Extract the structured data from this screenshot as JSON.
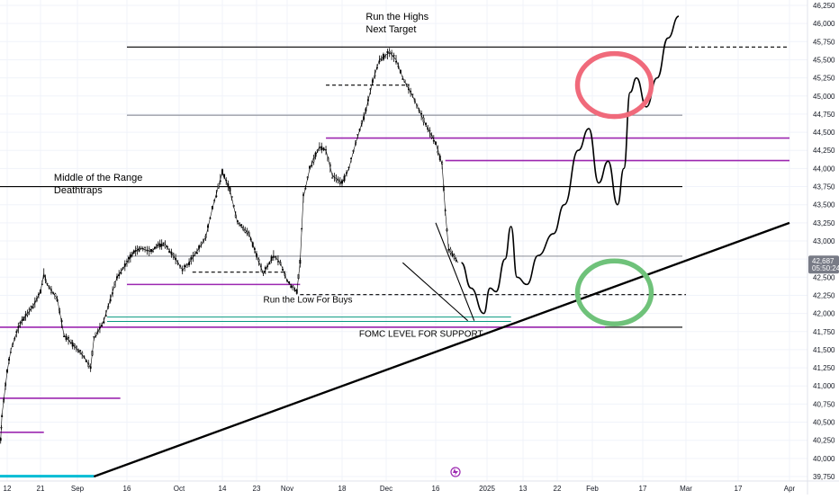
{
  "chart_data": {
    "type": "line",
    "subtype": "candlestick-with-annotations",
    "title": "",
    "xlabel": "",
    "ylabel": "",
    "ylim": [
      39750,
      46250
    ],
    "y_ticks": [
      39750,
      40000,
      40250,
      40500,
      40750,
      41000,
      41250,
      41500,
      41750,
      42000,
      42250,
      42500,
      42750,
      43000,
      43250,
      43500,
      43750,
      44000,
      44250,
      44500,
      44750,
      45000,
      45250,
      45500,
      45750,
      46000,
      46250
    ],
    "y_tick_labels": [
      "39,750",
      "40,000",
      "40,250",
      "40,500",
      "40,750",
      "41,000",
      "41,250",
      "41,500",
      "41,750",
      "42,000",
      "42,250",
      "42,500",
      "42,750",
      "43,000",
      "43,250",
      "43,500",
      "43,750",
      "44,000",
      "44,250",
      "44,500",
      "44,750",
      "45,000",
      "45,250",
      "45,500",
      "45,750",
      "46,000",
      "46,250"
    ],
    "x_ticks": [
      {
        "label": "12",
        "date": "2024-08-12"
      },
      {
        "label": "21",
        "date": "2024-08-21"
      },
      {
        "label": "Sep",
        "date": "2024-09-01"
      },
      {
        "label": "16",
        "date": "2024-09-16"
      },
      {
        "label": "Oct",
        "date": "2024-10-01"
      },
      {
        "label": "14",
        "date": "2024-10-14"
      },
      {
        "label": "23",
        "date": "2024-10-23"
      },
      {
        "label": "Nov",
        "date": "2024-11-01"
      },
      {
        "label": "18",
        "date": "2024-11-18"
      },
      {
        "label": "Dec",
        "date": "2024-12-01"
      },
      {
        "label": "16",
        "date": "2024-12-16"
      },
      {
        "label": "2025",
        "date": "2025-01-01"
      },
      {
        "label": "13",
        "date": "2025-01-13"
      },
      {
        "label": "22",
        "date": "2025-01-22"
      },
      {
        "label": "Feb",
        "date": "2025-02-01"
      },
      {
        "label": "17",
        "date": "2025-02-17"
      },
      {
        "label": "Mar",
        "date": "2025-03-01"
      },
      {
        "label": "17",
        "date": "2025-03-17"
      },
      {
        "label": "Apr",
        "date": "2025-04-01"
      }
    ],
    "current_price": {
      "label": "42,687",
      "countdown": "05:50:24",
      "value": 42687,
      "color": "#787b86"
    },
    "price_series": {
      "name": "",
      "color": "#000000",
      "x": [
        "2024-08-07",
        "2024-08-08",
        "2024-08-12",
        "2024-08-13",
        "2024-08-15",
        "2024-08-16",
        "2024-08-19",
        "2024-08-21",
        "2024-08-22",
        "2024-08-23",
        "2024-08-26",
        "2024-08-28",
        "2024-08-30",
        "2024-09-03",
        "2024-09-05",
        "2024-09-06",
        "2024-09-09",
        "2024-09-11",
        "2024-09-13",
        "2024-09-16",
        "2024-09-18",
        "2024-09-20",
        "2024-09-23",
        "2024-09-25",
        "2024-09-27",
        "2024-09-30",
        "2024-10-02",
        "2024-10-04",
        "2024-10-07",
        "2024-10-09",
        "2024-10-11",
        "2024-10-14",
        "2024-10-16",
        "2024-10-18",
        "2024-10-21",
        "2024-10-23",
        "2024-10-25",
        "2024-10-28",
        "2024-10-30",
        "2024-11-01",
        "2024-11-04",
        "2024-11-05",
        "2024-11-06",
        "2024-11-08",
        "2024-11-11",
        "2024-11-13",
        "2024-11-15",
        "2024-11-18",
        "2024-11-20",
        "2024-11-22",
        "2024-11-25",
        "2024-11-27",
        "2024-11-29",
        "2024-12-02",
        "2024-12-04",
        "2024-12-06",
        "2024-12-09",
        "2024-12-11",
        "2024-12-13",
        "2024-12-16",
        "2024-12-18",
        "2024-12-19",
        "2024-12-20",
        "2024-12-23"
      ],
      "values": [
        40250,
        40600,
        41200,
        41500,
        41800,
        41900,
        42100,
        42300,
        42550,
        42400,
        42200,
        41700,
        41600,
        41400,
        41250,
        41650,
        41900,
        42200,
        42500,
        42700,
        42850,
        42900,
        42850,
        42950,
        42950,
        42750,
        42600,
        42700,
        42900,
        43050,
        43450,
        43950,
        43700,
        43250,
        43100,
        42800,
        42550,
        42800,
        42700,
        42450,
        42300,
        42700,
        43600,
        44000,
        44300,
        44250,
        43900,
        43800,
        44000,
        44350,
        44800,
        45200,
        45500,
        45600,
        45500,
        45250,
        45000,
        44800,
        44600,
        44350,
        44050,
        43400,
        42900,
        42700
      ]
    },
    "projection": {
      "name": "",
      "color": "#000000",
      "x": [
        "2024-12-24",
        "2024-12-27",
        "2024-12-31",
        "2025-01-02",
        "2025-01-04",
        "2025-01-07",
        "2025-01-09",
        "2025-01-11",
        "2025-01-14",
        "2025-01-17",
        "2025-01-21",
        "2025-01-24",
        "2025-01-28",
        "2025-01-31",
        "2025-02-03",
        "2025-02-06",
        "2025-02-09",
        "2025-02-11",
        "2025-02-13",
        "2025-02-15",
        "2025-02-18",
        "2025-02-21",
        "2025-02-24",
        "2025-02-27"
      ],
      "values": [
        42700,
        42350,
        42000,
        42350,
        42300,
        42750,
        43200,
        42500,
        42400,
        42800,
        43100,
        43500,
        44250,
        44550,
        43800,
        44100,
        43500,
        44000,
        45050,
        45250,
        44850,
        45250,
        45800,
        46100
      ]
    },
    "trendlines": [
      {
        "name": "rising-support",
        "from": {
          "date": "2024-09-06",
          "value": 39750
        },
        "to": {
          "date": "2025-04-01",
          "value": 43250
        },
        "color": "#000000"
      },
      {
        "name": "wedge-upper",
        "from": {
          "date": "2024-12-16",
          "value": 43250
        },
        "to": {
          "date": "2024-12-28",
          "value": 41900
        },
        "color": "#000000"
      },
      {
        "name": "wedge-lower",
        "from": {
          "date": "2024-12-06",
          "value": 42700
        },
        "to": {
          "date": "2024-12-26",
          "value": 41900
        },
        "color": "#000000"
      }
    ],
    "levels": [
      {
        "value": 45675,
        "from": "2024-09-16",
        "to": "2025-02-28",
        "style": "solid",
        "color": "#000000"
      },
      {
        "value": 45675,
        "from": "2025-02-28",
        "to": "2025-04-01",
        "style": "dashed",
        "color": "#000000"
      },
      {
        "value": 44735,
        "from": "2024-09-16",
        "to": "2025-02-28",
        "style": "solid",
        "color": "#787b86"
      },
      {
        "value": 43750,
        "from": "2024-08-01",
        "to": "2025-02-28",
        "style": "solid",
        "color": "#000000"
      },
      {
        "value": 42790,
        "from": "2024-09-16",
        "to": "2025-02-28",
        "style": "solid",
        "color": "#787b86"
      },
      {
        "value": 41810,
        "from": "2024-09-10",
        "to": "2025-02-28",
        "style": "solid",
        "color": "#000000"
      },
      {
        "value": 45150,
        "from": "2024-11-13",
        "to": "2024-12-08",
        "style": "dashed",
        "color": "#000000"
      },
      {
        "value": 42570,
        "from": "2024-10-05",
        "to": "2024-11-01",
        "style": "dashed",
        "color": "#000000"
      },
      {
        "value": 42260,
        "from": "2024-11-05",
        "to": "2025-03-01",
        "style": "dashed",
        "color": "#000000"
      }
    ],
    "purple_levels": [
      {
        "value": 44420,
        "from": "2024-11-13",
        "to": "2025-04-01",
        "color": "#9c27b0"
      },
      {
        "value": 44110,
        "from": "2024-12-19",
        "to": "2025-04-01",
        "color": "#9c27b0"
      },
      {
        "value": 42400,
        "from": "2024-09-16",
        "to": "2024-11-05",
        "color": "#9c27b0"
      },
      {
        "value": 41810,
        "from": "2024-08-01",
        "to": "2025-02-05",
        "color": "#9c27b0"
      },
      {
        "value": 40830,
        "from": "2024-08-01",
        "to": "2024-09-14",
        "color": "#9c27b0"
      },
      {
        "value": 40360,
        "from": "2024-08-01",
        "to": "2024-08-22",
        "color": "#9c27b0"
      }
    ],
    "teal_levels": [
      {
        "value": 41950,
        "from": "2024-09-10",
        "to": "2025-01-09",
        "color": "#089981"
      },
      {
        "value": 41890,
        "from": "2024-09-10",
        "to": "2025-01-09",
        "color": "#089981"
      }
    ],
    "cyan_level": {
      "value": 39755,
      "from": "2024-08-01",
      "to": "2024-09-06",
      "color": "#00bcd4"
    },
    "circles": [
      {
        "name": "target-circle",
        "center": {
          "date": "2025-02-08",
          "value": 45150
        },
        "color": "#f06a7b"
      },
      {
        "name": "support-circle",
        "center": {
          "date": "2025-02-08",
          "value": 42290
        },
        "color": "#6fc27a"
      }
    ],
    "annotations": [
      {
        "text": "Run the Highs",
        "date": "2024-11-25",
        "value": 46050
      },
      {
        "text": "Next Target",
        "date": "2024-11-25",
        "value": 45880
      },
      {
        "text": "Middle of the Range",
        "date": "2024-08-25",
        "value": 43830
      },
      {
        "text": "Deathtraps",
        "date": "2024-08-25",
        "value": 43660
      },
      {
        "text": "Run the Low For Buys",
        "date": "2024-10-25",
        "value": 42150
      },
      {
        "text": "FOMC LEVEL FOR SUPPORT",
        "date": "2024-11-23",
        "value": 41680
      }
    ],
    "grid": true,
    "legend": "none"
  }
}
